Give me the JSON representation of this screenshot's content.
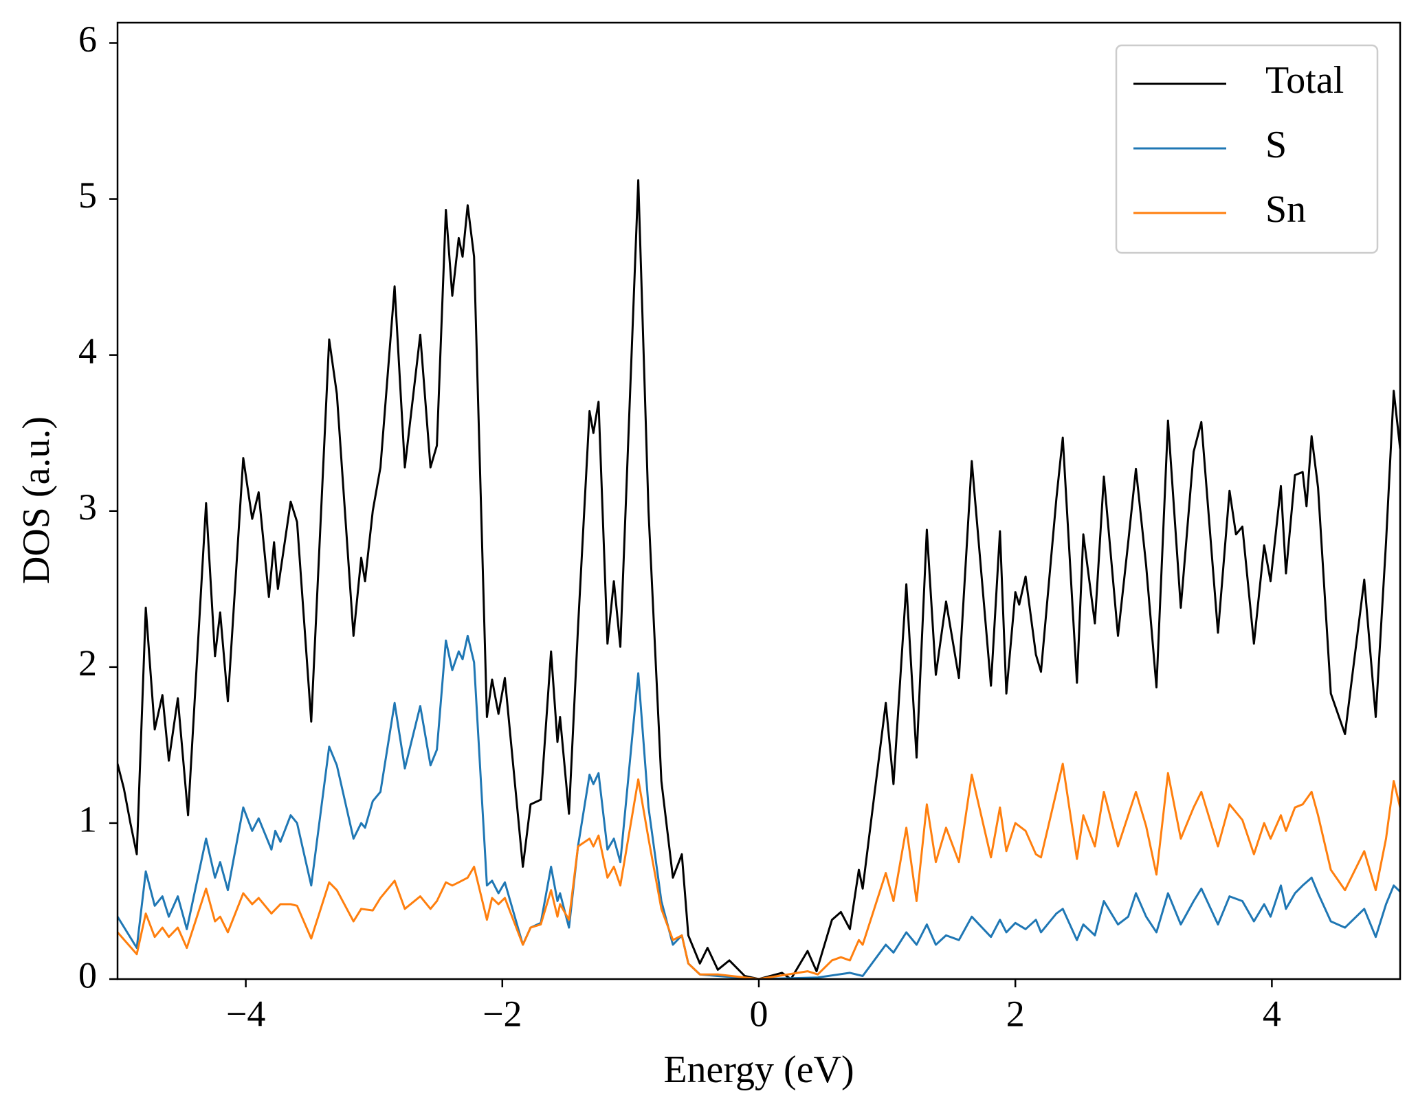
{
  "chart_data": {
    "type": "line",
    "xlabel": "Energy (eV)",
    "ylabel": "DOS (a.u.)",
    "xlim": [
      -5,
      5
    ],
    "ylim": [
      0,
      6.13
    ],
    "xticks": [
      {
        "value": -4,
        "label": "−4"
      },
      {
        "value": -2,
        "label": "−2"
      },
      0,
      2,
      4
    ],
    "yticks": [
      0,
      1,
      2,
      3,
      4,
      5,
      6
    ],
    "legend": "upper right",
    "series": [
      {
        "name": "Total",
        "color": "#000000",
        "x": [
          -5.0,
          -4.95,
          -4.9,
          -4.85,
          -4.78,
          -4.71,
          -4.65,
          -4.6,
          -4.53,
          -4.45,
          -4.31,
          -4.24,
          -4.2,
          -4.14,
          -4.02,
          -3.95,
          -3.9,
          -3.82,
          -3.78,
          -3.75,
          -3.65,
          -3.6,
          -3.49,
          -3.35,
          -3.29,
          -3.16,
          -3.1,
          -3.07,
          -3.01,
          -2.95,
          -2.84,
          -2.76,
          -2.64,
          -2.56,
          -2.51,
          -2.44,
          -2.39,
          -2.34,
          -2.31,
          -2.27,
          -2.22,
          -2.12,
          -2.08,
          -2.03,
          -1.98,
          -1.84,
          -1.78,
          -1.7,
          -1.62,
          -1.57,
          -1.55,
          -1.48,
          -1.41,
          -1.32,
          -1.29,
          -1.25,
          -1.18,
          -1.13,
          -1.08,
          -0.94,
          -0.86,
          -0.76,
          -0.67,
          -0.6,
          -0.55,
          -0.46,
          -0.4,
          -0.32,
          -0.23,
          -0.11,
          0.0,
          0.18,
          0.25,
          0.38,
          0.45,
          0.57,
          0.64,
          0.71,
          0.78,
          0.81,
          0.99,
          1.05,
          1.15,
          1.23,
          1.31,
          1.38,
          1.46,
          1.56,
          1.66,
          1.81,
          1.88,
          1.93,
          2.0,
          2.03,
          2.08,
          2.16,
          2.2,
          2.32,
          2.37,
          2.48,
          2.53,
          2.62,
          2.69,
          2.8,
          2.88,
          2.94,
          3.02,
          3.1,
          3.19,
          3.29,
          3.39,
          3.45,
          3.58,
          3.67,
          3.72,
          3.77,
          3.86,
          3.94,
          3.99,
          4.07,
          4.11,
          4.18,
          4.24,
          4.27,
          4.31,
          4.36,
          4.46,
          4.57,
          4.72,
          4.81,
          4.89,
          4.95,
          5.0
        ],
        "values": [
          1.38,
          1.22,
          1.0,
          0.8,
          2.38,
          1.6,
          1.82,
          1.4,
          1.8,
          1.05,
          3.05,
          2.07,
          2.35,
          1.78,
          3.34,
          2.95,
          3.12,
          2.45,
          2.8,
          2.5,
          3.06,
          2.93,
          1.65,
          4.1,
          3.75,
          2.2,
          2.7,
          2.55,
          3.0,
          3.28,
          4.44,
          3.28,
          4.13,
          3.28,
          3.42,
          4.93,
          4.38,
          4.75,
          4.63,
          4.96,
          4.63,
          1.68,
          1.92,
          1.7,
          1.93,
          0.72,
          1.12,
          1.15,
          2.1,
          1.52,
          1.68,
          1.06,
          2.25,
          3.64,
          3.5,
          3.7,
          2.15,
          2.55,
          2.13,
          5.12,
          3.0,
          1.27,
          0.65,
          0.8,
          0.28,
          0.1,
          0.2,
          0.06,
          0.12,
          0.02,
          0.0,
          0.04,
          0.0,
          0.18,
          0.05,
          0.38,
          0.43,
          0.32,
          0.7,
          0.58,
          1.77,
          1.25,
          2.53,
          1.42,
          2.88,
          1.95,
          2.42,
          1.93,
          3.32,
          1.88,
          2.87,
          1.83,
          2.48,
          2.4,
          2.58,
          2.08,
          1.97,
          3.08,
          3.47,
          1.9,
          2.85,
          2.28,
          3.22,
          2.2,
          2.8,
          3.27,
          2.65,
          1.87,
          3.58,
          2.38,
          3.38,
          3.57,
          2.22,
          3.13,
          2.85,
          2.9,
          2.15,
          2.78,
          2.55,
          3.16,
          2.6,
          3.23,
          3.25,
          3.03,
          3.48,
          3.15,
          1.83,
          1.57,
          2.56,
          1.68,
          2.8,
          3.77,
          3.4
        ]
      },
      {
        "name": "S",
        "color": "#1f77b4",
        "x": [
          -5.0,
          -4.85,
          -4.78,
          -4.71,
          -4.65,
          -4.6,
          -4.53,
          -4.46,
          -4.31,
          -4.24,
          -4.2,
          -4.14,
          -4.02,
          -3.95,
          -3.9,
          -3.8,
          -3.77,
          -3.73,
          -3.65,
          -3.6,
          -3.49,
          -3.35,
          -3.29,
          -3.16,
          -3.1,
          -3.07,
          -3.01,
          -2.95,
          -2.84,
          -2.76,
          -2.64,
          -2.56,
          -2.51,
          -2.44,
          -2.39,
          -2.34,
          -2.31,
          -2.27,
          -2.22,
          -2.12,
          -2.08,
          -2.03,
          -1.98,
          -1.84,
          -1.78,
          -1.7,
          -1.62,
          -1.57,
          -1.55,
          -1.48,
          -1.41,
          -1.32,
          -1.29,
          -1.25,
          -1.18,
          -1.13,
          -1.08,
          -0.94,
          -0.86,
          -0.76,
          -0.67,
          -0.6,
          -0.55,
          -0.46,
          -0.32,
          0.0,
          0.46,
          0.71,
          0.81,
          0.99,
          1.05,
          1.15,
          1.23,
          1.31,
          1.38,
          1.46,
          1.56,
          1.66,
          1.81,
          1.88,
          1.93,
          2.0,
          2.08,
          2.16,
          2.2,
          2.32,
          2.37,
          2.48,
          2.53,
          2.62,
          2.69,
          2.8,
          2.88,
          2.94,
          3.02,
          3.1,
          3.19,
          3.29,
          3.39,
          3.45,
          3.58,
          3.67,
          3.77,
          3.86,
          3.94,
          3.99,
          4.07,
          4.11,
          4.18,
          4.24,
          4.31,
          4.36,
          4.46,
          4.57,
          4.72,
          4.81,
          4.89,
          4.95,
          5.0
        ],
        "values": [
          0.4,
          0.2,
          0.69,
          0.47,
          0.53,
          0.4,
          0.53,
          0.32,
          0.9,
          0.65,
          0.75,
          0.57,
          1.1,
          0.95,
          1.03,
          0.83,
          0.95,
          0.88,
          1.05,
          1.0,
          0.6,
          1.49,
          1.37,
          0.9,
          1.0,
          0.97,
          1.14,
          1.2,
          1.77,
          1.35,
          1.75,
          1.37,
          1.47,
          2.17,
          1.98,
          2.1,
          2.05,
          2.2,
          2.03,
          0.6,
          0.63,
          0.55,
          0.62,
          0.22,
          0.33,
          0.36,
          0.72,
          0.5,
          0.55,
          0.33,
          0.85,
          1.31,
          1.25,
          1.32,
          0.83,
          0.9,
          0.75,
          1.96,
          1.1,
          0.5,
          0.22,
          0.28,
          0.1,
          0.03,
          0.02,
          0.0,
          0.01,
          0.04,
          0.02,
          0.22,
          0.17,
          0.3,
          0.22,
          0.35,
          0.22,
          0.28,
          0.25,
          0.4,
          0.27,
          0.38,
          0.3,
          0.36,
          0.32,
          0.38,
          0.3,
          0.42,
          0.45,
          0.25,
          0.35,
          0.28,
          0.5,
          0.35,
          0.4,
          0.55,
          0.4,
          0.3,
          0.55,
          0.35,
          0.5,
          0.58,
          0.35,
          0.53,
          0.5,
          0.37,
          0.48,
          0.4,
          0.6,
          0.45,
          0.55,
          0.6,
          0.65,
          0.55,
          0.37,
          0.33,
          0.45,
          0.27,
          0.48,
          0.6,
          0.56
        ]
      },
      {
        "name": "Sn",
        "color": "#ff7f0e",
        "x": [
          -5.0,
          -4.85,
          -4.78,
          -4.71,
          -4.65,
          -4.6,
          -4.53,
          -4.46,
          -4.31,
          -4.24,
          -4.2,
          -4.14,
          -4.02,
          -3.95,
          -3.9,
          -3.8,
          -3.73,
          -3.65,
          -3.6,
          -3.49,
          -3.35,
          -3.29,
          -3.16,
          -3.1,
          -3.01,
          -2.95,
          -2.84,
          -2.76,
          -2.64,
          -2.56,
          -2.51,
          -2.44,
          -2.39,
          -2.34,
          -2.27,
          -2.22,
          -2.12,
          -2.08,
          -2.03,
          -1.98,
          -1.84,
          -1.78,
          -1.7,
          -1.62,
          -1.57,
          -1.55,
          -1.48,
          -1.41,
          -1.32,
          -1.29,
          -1.25,
          -1.18,
          -1.13,
          -1.08,
          -0.94,
          -0.86,
          -0.76,
          -0.67,
          -0.6,
          -0.55,
          -0.46,
          -0.32,
          0.0,
          0.38,
          0.46,
          0.57,
          0.64,
          0.71,
          0.78,
          0.81,
          0.99,
          1.05,
          1.15,
          1.23,
          1.31,
          1.38,
          1.46,
          1.56,
          1.66,
          1.81,
          1.88,
          1.93,
          2.0,
          2.08,
          2.16,
          2.2,
          2.32,
          2.37,
          2.48,
          2.53,
          2.62,
          2.69,
          2.8,
          2.88,
          2.94,
          3.02,
          3.1,
          3.19,
          3.29,
          3.39,
          3.45,
          3.58,
          3.67,
          3.77,
          3.86,
          3.94,
          3.99,
          4.07,
          4.11,
          4.18,
          4.24,
          4.31,
          4.36,
          4.46,
          4.57,
          4.72,
          4.81,
          4.89,
          4.95,
          5.0
        ],
        "values": [
          0.3,
          0.16,
          0.42,
          0.27,
          0.33,
          0.27,
          0.33,
          0.2,
          0.58,
          0.37,
          0.4,
          0.3,
          0.55,
          0.48,
          0.52,
          0.42,
          0.48,
          0.48,
          0.47,
          0.26,
          0.62,
          0.57,
          0.37,
          0.45,
          0.44,
          0.52,
          0.63,
          0.45,
          0.53,
          0.45,
          0.5,
          0.62,
          0.6,
          0.62,
          0.65,
          0.72,
          0.38,
          0.52,
          0.48,
          0.52,
          0.22,
          0.33,
          0.35,
          0.57,
          0.4,
          0.48,
          0.38,
          0.85,
          0.9,
          0.85,
          0.92,
          0.65,
          0.72,
          0.6,
          1.28,
          0.9,
          0.45,
          0.25,
          0.28,
          0.1,
          0.03,
          0.03,
          0.0,
          0.05,
          0.03,
          0.12,
          0.14,
          0.12,
          0.25,
          0.22,
          0.68,
          0.5,
          0.97,
          0.5,
          1.12,
          0.75,
          0.97,
          0.75,
          1.31,
          0.78,
          1.1,
          0.82,
          1.0,
          0.95,
          0.8,
          0.78,
          1.2,
          1.38,
          0.77,
          1.05,
          0.85,
          1.2,
          0.85,
          1.05,
          1.2,
          0.98,
          0.67,
          1.32,
          0.9,
          1.1,
          1.2,
          0.85,
          1.12,
          1.02,
          0.8,
          1.0,
          0.9,
          1.05,
          0.95,
          1.1,
          1.12,
          1.2,
          1.05,
          0.7,
          0.57,
          0.82,
          0.57,
          0.9,
          1.27,
          1.1
        ]
      }
    ]
  }
}
